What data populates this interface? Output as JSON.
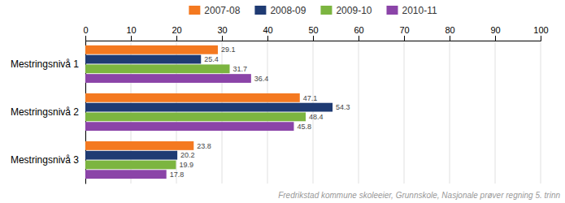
{
  "chart_data": {
    "type": "bar",
    "orientation": "horizontal",
    "categories": [
      "Mestringsnivå 1",
      "Mestringsnivå 2",
      "Mestringsnivå 3"
    ],
    "series": [
      {
        "name": "2007-08",
        "color": "#F47920",
        "values": [
          29.1,
          47.1,
          23.8
        ]
      },
      {
        "name": "2008-09",
        "color": "#1F3B73",
        "values": [
          25.4,
          54.3,
          20.2
        ]
      },
      {
        "name": "2009-10",
        "color": "#7CB540",
        "values": [
          31.7,
          48.4,
          19.9
        ]
      },
      {
        "name": "2010-11",
        "color": "#8B44A8",
        "values": [
          36.4,
          45.8,
          17.8
        ]
      }
    ],
    "xlim": [
      0,
      100
    ],
    "xticks": [
      0,
      10,
      20,
      30,
      40,
      50,
      60,
      70,
      80,
      90,
      100
    ],
    "grid": true,
    "legend": "top",
    "data_labels": true,
    "annotations": [
      "Fredrikstad kommune skoleeier, Grunnskole, Nasjonale prøver regning 5. trinn"
    ]
  }
}
